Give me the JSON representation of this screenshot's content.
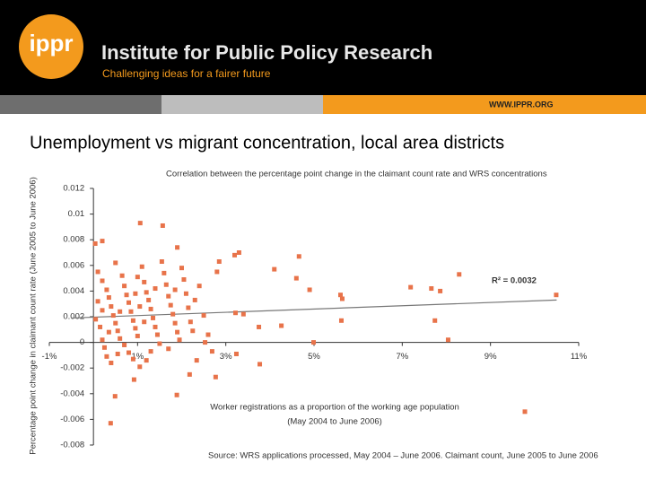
{
  "header": {
    "logo": "ippr",
    "title": "Institute for Public Policy Research",
    "tagline": "Challenging ideas for a fairer future",
    "url": "WWW.IPPR.ORG"
  },
  "slide_title": "Unemployment vs migrant concentration, local area districts",
  "chart_data": {
    "type": "scatter",
    "title": "Correlation between the percentage point change in the claimant count rate and WRS concentrations",
    "y_label": "Percentage point change in claimant count rate (June 2005 to June 2006)",
    "x_label": [
      "Worker registrations as a proportion of the working age population",
      "(May 2004 to June 2006)"
    ],
    "source": "Source: WRS applications processed, May 2004 – June 2006. Claimant count, June 2005 to June 2006",
    "r_squared_label": "R² = 0.0032",
    "color": "#e8734a",
    "xlim": [
      -1,
      11
    ],
    "xticks": [
      {
        "value": -1,
        "label": "-1%"
      },
      {
        "value": 1,
        "label": "1%"
      },
      {
        "value": 3,
        "label": "3%"
      },
      {
        "value": 5,
        "label": "5%"
      },
      {
        "value": 7,
        "label": "7%"
      },
      {
        "value": 9,
        "label": "9%"
      },
      {
        "value": 11,
        "label": "11%"
      }
    ],
    "ylim": [
      -0.008,
      0.012
    ],
    "yticks": [
      0.012,
      0.01,
      0.008,
      0.006,
      0.004,
      0.002,
      0,
      -0.002,
      -0.004,
      -0.006,
      -0.008
    ],
    "x": [
      1.06,
      1.57,
      0.04,
      0.2,
      1.9,
      3.3,
      3.2,
      4.66,
      4.1,
      2.8,
      2.85,
      4.6,
      4.9,
      5.6,
      5.64,
      5.62,
      7.19,
      7.66,
      7.86,
      8.29,
      7.74,
      8.04,
      10.49,
      9.78,
      0.39,
      0.49,
      1.89,
      0.92,
      2.18,
      2.77,
      3.77,
      3.24,
      4.99,
      4.26,
      3.75,
      3.22,
      3.4,
      2.53,
      2.69,
      2.34,
      0.1,
      0.2,
      0.3,
      0.35,
      0.4,
      0.45,
      0.5,
      0.55,
      0.6,
      0.25,
      0.3,
      0.4,
      0.15,
      0.2,
      0.1,
      0.05,
      0.65,
      0.7,
      0.75,
      0.8,
      0.85,
      0.9,
      0.95,
      1.0,
      0.7,
      0.8,
      0.9,
      1.05,
      1.1,
      1.15,
      1.2,
      1.25,
      1.3,
      1.35,
      1.4,
      1.45,
      1.5,
      1.3,
      1.2,
      1.55,
      1.6,
      1.65,
      1.7,
      1.75,
      1.8,
      1.85,
      1.9,
      1.95,
      1.7,
      2.0,
      2.05,
      2.1,
      2.15,
      2.2,
      2.25,
      2.3,
      2.4,
      2.5,
      2.6,
      0.5,
      0.6,
      0.95,
      1.05,
      1.15,
      1.4,
      0.35,
      0.55,
      1.0,
      1.85,
      0.2
    ],
    "values": [
      0.0093,
      0.0091,
      0.0077,
      0.0079,
      0.0074,
      0.007,
      0.0068,
      0.0067,
      0.0057,
      0.0055,
      0.0063,
      0.005,
      0.0041,
      0.0037,
      0.0034,
      0.0017,
      0.0043,
      0.0042,
      0.004,
      0.0053,
      0.0017,
      0.0002,
      0.0037,
      -0.0054,
      -0.0063,
      -0.0042,
      -0.0041,
      -0.0029,
      -0.0025,
      -0.0027,
      -0.0017,
      -0.0009,
      0,
      0.0013,
      0.0012,
      0.0023,
      0.0022,
      0,
      -0.0007,
      -0.0014,
      0.0055,
      0.0048,
      0.0041,
      0.0035,
      0.0028,
      0.0021,
      0.0015,
      0.0009,
      0.0003,
      -0.0004,
      -0.0011,
      -0.0016,
      0.0012,
      0.0025,
      0.0032,
      0.0018,
      0.0052,
      0.0044,
      0.0037,
      0.0031,
      0.0024,
      0.0017,
      0.0011,
      0.0005,
      -0.0002,
      -0.0008,
      -0.0013,
      -0.0019,
      0.0059,
      0.0047,
      0.0039,
      0.0033,
      0.0026,
      0.0019,
      0.0012,
      0.0006,
      -0.0001,
      -0.0007,
      -0.0014,
      0.0063,
      0.0054,
      0.0045,
      0.0036,
      0.0029,
      0.0022,
      0.0015,
      0.0008,
      0.0002,
      -0.0005,
      0.0058,
      0.0049,
      0.0038,
      0.0027,
      0.0016,
      0.0009,
      0.0033,
      0.0044,
      0.0021,
      0.0006,
      0.0062,
      0.0024,
      0.0038,
      0.0028,
      0.0016,
      0.0042,
      0.0008,
      -0.0009,
      0.0051,
      0.0041,
      0.0002
    ],
    "trendline": {
      "x": [
        -0.5,
        10.5
      ],
      "values": [
        0.0019,
        0.0033
      ]
    }
  }
}
